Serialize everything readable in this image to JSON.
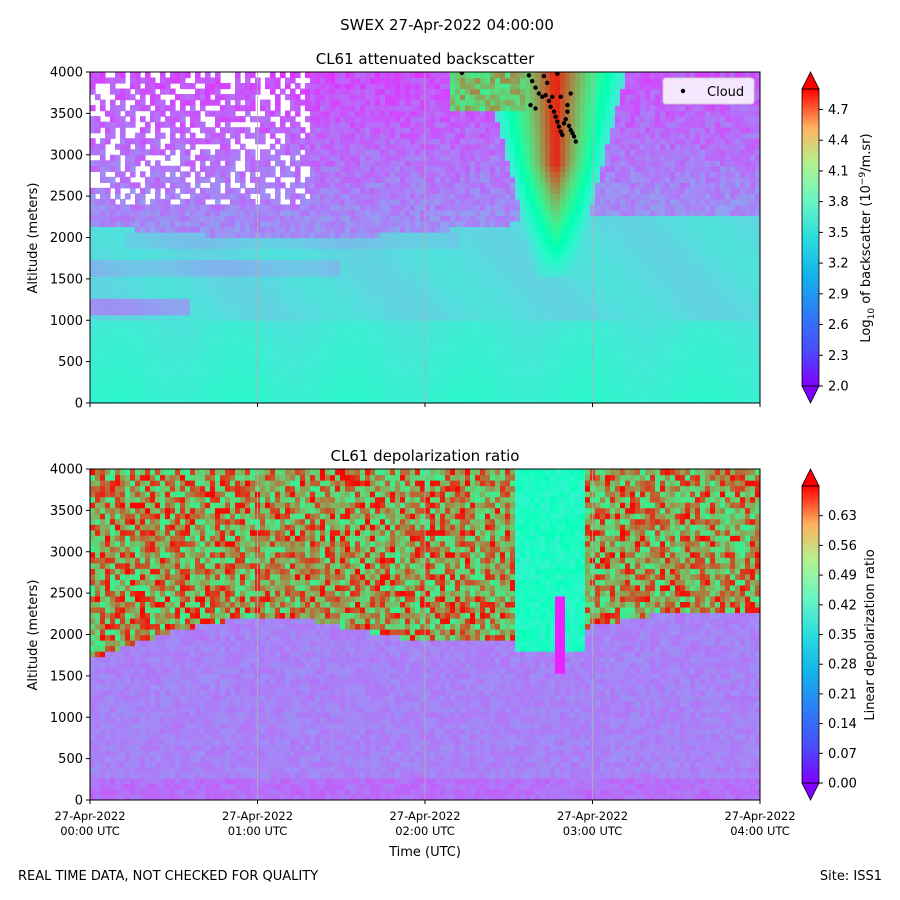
{
  "suptitle": "SWEX 27-Apr-2022 04:00:00",
  "footer": {
    "left": "REAL TIME DATA, NOT CHECKED FOR QUALITY",
    "right": "Site: ISS1"
  },
  "colors": {
    "colormap": "rainbow",
    "cloud_marker": "#000000",
    "background": "#ffffff",
    "gridline": "#b0b0b0"
  },
  "chart_data": [
    {
      "type": "heatmap",
      "title": "CL61 attenuated backscatter",
      "ylabel": "Altitude (meters)",
      "ylim": [
        0,
        4000
      ],
      "y_ticks": [
        "0",
        "500",
        "1000",
        "1500",
        "2000",
        "2500",
        "3000",
        "3500",
        "4000"
      ],
      "x_ticks_shown": false,
      "colorbar": {
        "label_prefix": "Log",
        "label_sub": "10",
        "label_mid": " of backscatter (10",
        "label_sup": "−9",
        "label_suffix": "/m.sr)",
        "range": [
          2.0,
          4.9
        ],
        "extend": "both",
        "ticks": [
          "2.0",
          "2.3",
          "2.6",
          "2.9",
          "3.2",
          "3.5",
          "3.8",
          "4.1",
          "4.4",
          "4.7"
        ]
      },
      "legend": {
        "label": "Cloud",
        "placement": "upper right"
      },
      "cloud_points": [
        {
          "t": 2.22,
          "alt": 3990
        },
        {
          "t": 2.62,
          "alt": 3960
        },
        {
          "t": 2.64,
          "alt": 3890
        },
        {
          "t": 2.66,
          "alt": 3810
        },
        {
          "t": 2.68,
          "alt": 3740
        },
        {
          "t": 2.7,
          "alt": 3700
        },
        {
          "t": 2.72,
          "alt": 3720
        },
        {
          "t": 2.74,
          "alt": 3650
        },
        {
          "t": 2.75,
          "alt": 3580
        },
        {
          "t": 2.77,
          "alt": 3520
        },
        {
          "t": 2.78,
          "alt": 3460
        },
        {
          "t": 2.79,
          "alt": 3400
        },
        {
          "t": 2.8,
          "alt": 3340
        },
        {
          "t": 2.81,
          "alt": 3280
        },
        {
          "t": 2.82,
          "alt": 3240
        },
        {
          "t": 2.83,
          "alt": 3380
        },
        {
          "t": 2.84,
          "alt": 3430
        },
        {
          "t": 2.85,
          "alt": 3600
        },
        {
          "t": 2.86,
          "alt": 3350
        },
        {
          "t": 2.87,
          "alt": 3300
        },
        {
          "t": 2.88,
          "alt": 3260
        },
        {
          "t": 2.89,
          "alt": 3220
        },
        {
          "t": 2.9,
          "alt": 3160
        },
        {
          "t": 2.63,
          "alt": 3600
        },
        {
          "t": 2.66,
          "alt": 3560
        },
        {
          "t": 2.71,
          "alt": 3950
        },
        {
          "t": 2.73,
          "alt": 3870
        },
        {
          "t": 2.76,
          "alt": 3700
        },
        {
          "t": 2.79,
          "alt": 3980
        },
        {
          "t": 2.81,
          "alt": 3700
        },
        {
          "t": 2.85,
          "alt": 3520
        },
        {
          "t": 2.87,
          "alt": 3740
        }
      ]
    },
    {
      "type": "heatmap",
      "title": "CL61 depolarization ratio",
      "ylabel": "Altitude (meters)",
      "xlabel": "Time (UTC)",
      "ylim": [
        0,
        4000
      ],
      "y_ticks": [
        "0",
        "500",
        "1000",
        "1500",
        "2000",
        "2500",
        "3000",
        "3500",
        "4000"
      ],
      "x_ticks": [
        [
          "27-Apr-2022",
          "00:00 UTC"
        ],
        [
          "27-Apr-2022",
          "01:00 UTC"
        ],
        [
          "27-Apr-2022",
          "02:00 UTC"
        ],
        [
          "27-Apr-2022",
          "03:00 UTC"
        ],
        [
          "27-Apr-2022",
          "04:00 UTC"
        ]
      ],
      "colorbar": {
        "label": "Linear depolarization ratio",
        "range": [
          0.0,
          0.7
        ],
        "extend": "both",
        "ticks": [
          "0.00",
          "0.07",
          "0.14",
          "0.21",
          "0.28",
          "0.35",
          "0.42",
          "0.49",
          "0.56",
          "0.63"
        ]
      }
    }
  ]
}
